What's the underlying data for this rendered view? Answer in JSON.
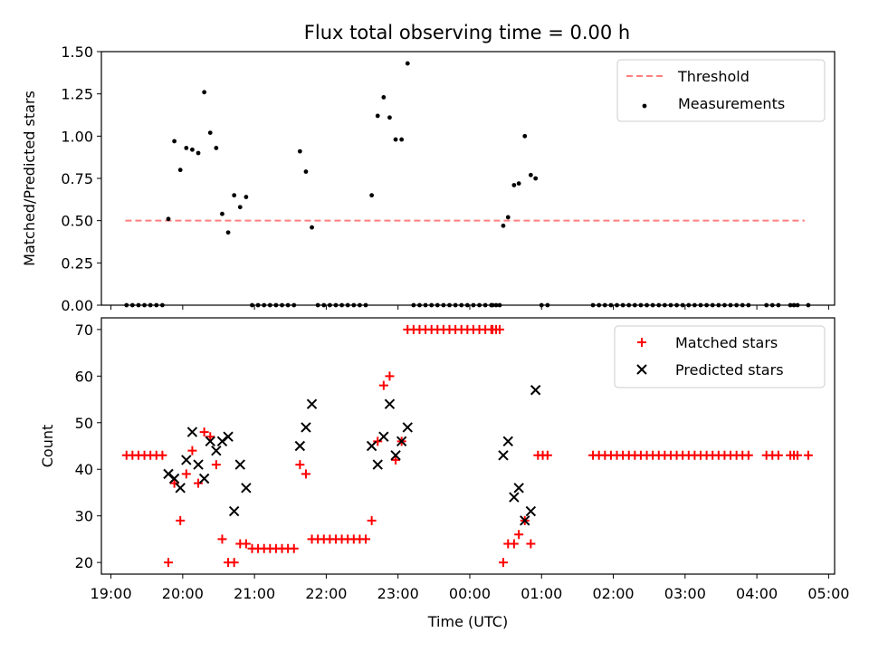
{
  "chart_data": [
    {
      "type": "scatter",
      "title": "Flux total observing time = 0.00 h",
      "xlabel": "",
      "ylabel": "Matched/Predicted stars",
      "xlim": [
        "18:52",
        "05:05"
      ],
      "ylim": [
        0,
        1.5
      ],
      "yticks": [
        "0.00",
        "0.25",
        "0.50",
        "0.75",
        "1.00",
        "1.25",
        "1.50"
      ],
      "xticks": [
        "19:00",
        "20:00",
        "21:00",
        "22:00",
        "23:00",
        "00:00",
        "01:00",
        "02:00",
        "03:00",
        "04:00",
        "05:00"
      ],
      "show_xtick_labels": false,
      "grid": false,
      "legend_position": "top-right",
      "threshold": {
        "name": "Threshold",
        "value": 0.5,
        "x_start": "19:12",
        "x_end": "04:40",
        "color": "#ff7f7f",
        "style": "dashed"
      },
      "series": [
        {
          "name": "Measurements",
          "color": "#000000",
          "marker": "dot",
          "points": [
            [
              "19:13",
              0
            ],
            [
              "19:18",
              0
            ],
            [
              "19:23",
              0
            ],
            [
              "19:28",
              0
            ],
            [
              "19:33",
              0
            ],
            [
              "19:38",
              0
            ],
            [
              "19:43",
              0
            ],
            [
              "19:48",
              0.51
            ],
            [
              "19:53",
              0.97
            ],
            [
              "19:58",
              0.8
            ],
            [
              "20:03",
              0.93
            ],
            [
              "20:08",
              0.92
            ],
            [
              "20:13",
              0.9
            ],
            [
              "20:18",
              1.26
            ],
            [
              "20:23",
              1.02
            ],
            [
              "20:28",
              0.93
            ],
            [
              "20:33",
              0.54
            ],
            [
              "20:38",
              0.43
            ],
            [
              "20:43",
              0.65
            ],
            [
              "20:48",
              0.58
            ],
            [
              "20:53",
              0.64
            ],
            [
              "20:58",
              0
            ],
            [
              "21:03",
              0
            ],
            [
              "21:08",
              0
            ],
            [
              "21:13",
              0
            ],
            [
              "21:18",
              0
            ],
            [
              "21:23",
              0
            ],
            [
              "21:28",
              0
            ],
            [
              "21:33",
              0
            ],
            [
              "21:38",
              0.91
            ],
            [
              "21:43",
              0.79
            ],
            [
              "21:48",
              0.46
            ],
            [
              "21:53",
              0
            ],
            [
              "21:58",
              0
            ],
            [
              "22:03",
              0
            ],
            [
              "22:08",
              0
            ],
            [
              "22:13",
              0
            ],
            [
              "22:18",
              0
            ],
            [
              "22:23",
              0
            ],
            [
              "22:28",
              0
            ],
            [
              "22:33",
              0
            ],
            [
              "22:38",
              0.65
            ],
            [
              "22:43",
              1.12
            ],
            [
              "22:48",
              1.23
            ],
            [
              "22:53",
              1.11
            ],
            [
              "22:58",
              0.98
            ],
            [
              "23:03",
              0.98
            ],
            [
              "23:08",
              1.43
            ],
            [
              "23:13",
              0
            ],
            [
              "23:18",
              0
            ],
            [
              "23:23",
              0
            ],
            [
              "23:28",
              0
            ],
            [
              "23:33",
              0
            ],
            [
              "23:38",
              0
            ],
            [
              "23:43",
              0
            ],
            [
              "23:48",
              0
            ],
            [
              "23:53",
              0
            ],
            [
              "23:58",
              0
            ],
            [
              "00:03",
              0
            ],
            [
              "00:08",
              0
            ],
            [
              "00:13",
              0
            ],
            [
              "00:18",
              0
            ],
            [
              "00:19",
              0
            ],
            [
              "00:22",
              0
            ],
            [
              "00:25",
              0
            ],
            [
              "00:28",
              0.47
            ],
            [
              "00:32",
              0.52
            ],
            [
              "00:37",
              0.71
            ],
            [
              "00:41",
              0.72
            ],
            [
              "00:46",
              1.0
            ],
            [
              "00:51",
              0.77
            ],
            [
              "00:55",
              0.75
            ],
            [
              "01:00",
              0
            ],
            [
              "01:05",
              0
            ],
            [
              "01:43",
              0
            ],
            [
              "01:48",
              0
            ],
            [
              "01:53",
              0
            ],
            [
              "01:58",
              0
            ],
            [
              "02:03",
              0
            ],
            [
              "02:08",
              0
            ],
            [
              "02:13",
              0
            ],
            [
              "02:18",
              0
            ],
            [
              "02:23",
              0
            ],
            [
              "02:28",
              0
            ],
            [
              "02:33",
              0
            ],
            [
              "02:38",
              0
            ],
            [
              "02:43",
              0
            ],
            [
              "02:48",
              0
            ],
            [
              "02:53",
              0
            ],
            [
              "02:58",
              0
            ],
            [
              "03:03",
              0
            ],
            [
              "03:08",
              0
            ],
            [
              "03:13",
              0
            ],
            [
              "03:18",
              0
            ],
            [
              "03:23",
              0
            ],
            [
              "03:28",
              0
            ],
            [
              "03:33",
              0
            ],
            [
              "03:38",
              0
            ],
            [
              "03:43",
              0
            ],
            [
              "03:48",
              0
            ],
            [
              "03:53",
              0
            ],
            [
              "04:08",
              0
            ],
            [
              "04:13",
              0
            ],
            [
              "04:18",
              0
            ],
            [
              "04:28",
              0
            ],
            [
              "04:31",
              0
            ],
            [
              "04:34",
              0
            ],
            [
              "04:43",
              0
            ]
          ]
        }
      ]
    },
    {
      "type": "scatter",
      "title": "",
      "xlabel": "Time (UTC)",
      "ylabel": "Count",
      "xlim": [
        "18:52",
        "05:05"
      ],
      "ylim": [
        17.5,
        72.5
      ],
      "yticks": [
        "20",
        "30",
        "40",
        "50",
        "60",
        "70"
      ],
      "xticks": [
        "19:00",
        "20:00",
        "21:00",
        "22:00",
        "23:00",
        "00:00",
        "01:00",
        "02:00",
        "03:00",
        "04:00",
        "05:00"
      ],
      "show_xtick_labels": true,
      "grid": false,
      "legend_position": "top-right",
      "series": [
        {
          "name": "Matched stars",
          "color": "#ff0000",
          "marker": "plus",
          "points": [
            [
              "19:13",
              43
            ],
            [
              "19:18",
              43
            ],
            [
              "19:23",
              43
            ],
            [
              "19:28",
              43
            ],
            [
              "19:33",
              43
            ],
            [
              "19:38",
              43
            ],
            [
              "19:43",
              43
            ],
            [
              "19:48",
              20
            ],
            [
              "19:53",
              37
            ],
            [
              "19:58",
              29
            ],
            [
              "20:03",
              39
            ],
            [
              "20:08",
              44
            ],
            [
              "20:13",
              37
            ],
            [
              "20:18",
              48
            ],
            [
              "20:23",
              47
            ],
            [
              "20:28",
              41
            ],
            [
              "20:33",
              25
            ],
            [
              "20:38",
              20
            ],
            [
              "20:43",
              20
            ],
            [
              "20:48",
              24
            ],
            [
              "20:53",
              24
            ],
            [
              "20:58",
              23
            ],
            [
              "21:03",
              23
            ],
            [
              "21:08",
              23
            ],
            [
              "21:13",
              23
            ],
            [
              "21:18",
              23
            ],
            [
              "21:23",
              23
            ],
            [
              "21:28",
              23
            ],
            [
              "21:33",
              23
            ],
            [
              "21:38",
              41
            ],
            [
              "21:43",
              39
            ],
            [
              "21:48",
              25
            ],
            [
              "21:53",
              25
            ],
            [
              "21:58",
              25
            ],
            [
              "22:03",
              25
            ],
            [
              "22:08",
              25
            ],
            [
              "22:13",
              25
            ],
            [
              "22:18",
              25
            ],
            [
              "22:23",
              25
            ],
            [
              "22:28",
              25
            ],
            [
              "22:33",
              25
            ],
            [
              "22:38",
              29
            ],
            [
              "22:43",
              46
            ],
            [
              "22:48",
              58
            ],
            [
              "22:53",
              60
            ],
            [
              "22:58",
              42
            ],
            [
              "23:03",
              46
            ],
            [
              "23:08",
              70
            ],
            [
              "23:13",
              70
            ],
            [
              "23:18",
              70
            ],
            [
              "23:23",
              70
            ],
            [
              "23:28",
              70
            ],
            [
              "23:33",
              70
            ],
            [
              "23:38",
              70
            ],
            [
              "23:43",
              70
            ],
            [
              "23:48",
              70
            ],
            [
              "23:53",
              70
            ],
            [
              "23:58",
              70
            ],
            [
              "00:03",
              70
            ],
            [
              "00:08",
              70
            ],
            [
              "00:13",
              70
            ],
            [
              "00:18",
              70
            ],
            [
              "00:19",
              70
            ],
            [
              "00:22",
              70
            ],
            [
              "00:25",
              70
            ],
            [
              "00:28",
              20
            ],
            [
              "00:32",
              24
            ],
            [
              "00:37",
              24
            ],
            [
              "00:41",
              26
            ],
            [
              "00:46",
              29
            ],
            [
              "00:51",
              24
            ],
            [
              "00:57",
              43
            ],
            [
              "01:01",
              43
            ],
            [
              "01:05",
              43
            ],
            [
              "01:43",
              43
            ],
            [
              "01:48",
              43
            ],
            [
              "01:53",
              43
            ],
            [
              "01:58",
              43
            ],
            [
              "02:03",
              43
            ],
            [
              "02:08",
              43
            ],
            [
              "02:13",
              43
            ],
            [
              "02:18",
              43
            ],
            [
              "02:23",
              43
            ],
            [
              "02:28",
              43
            ],
            [
              "02:33",
              43
            ],
            [
              "02:38",
              43
            ],
            [
              "02:43",
              43
            ],
            [
              "02:48",
              43
            ],
            [
              "02:53",
              43
            ],
            [
              "02:58",
              43
            ],
            [
              "03:03",
              43
            ],
            [
              "03:08",
              43
            ],
            [
              "03:13",
              43
            ],
            [
              "03:18",
              43
            ],
            [
              "03:23",
              43
            ],
            [
              "03:28",
              43
            ],
            [
              "03:33",
              43
            ],
            [
              "03:38",
              43
            ],
            [
              "03:43",
              43
            ],
            [
              "03:48",
              43
            ],
            [
              "03:53",
              43
            ],
            [
              "04:08",
              43
            ],
            [
              "04:13",
              43
            ],
            [
              "04:18",
              43
            ],
            [
              "04:28",
              43
            ],
            [
              "04:31",
              43
            ],
            [
              "04:34",
              43
            ],
            [
              "04:43",
              43
            ]
          ]
        },
        {
          "name": "Predicted stars",
          "color": "#000000",
          "marker": "x",
          "points": [
            [
              "19:48",
              39
            ],
            [
              "19:53",
              38
            ],
            [
              "19:58",
              36
            ],
            [
              "20:03",
              42
            ],
            [
              "20:08",
              48
            ],
            [
              "20:13",
              41
            ],
            [
              "20:18",
              38
            ],
            [
              "20:23",
              46
            ],
            [
              "20:28",
              44
            ],
            [
              "20:33",
              46
            ],
            [
              "20:38",
              47
            ],
            [
              "20:43",
              31
            ],
            [
              "20:48",
              41
            ],
            [
              "20:53",
              36
            ],
            [
              "21:38",
              45
            ],
            [
              "21:43",
              49
            ],
            [
              "21:48",
              54
            ],
            [
              "22:38",
              45
            ],
            [
              "22:43",
              41
            ],
            [
              "22:48",
              47
            ],
            [
              "22:53",
              54
            ],
            [
              "22:58",
              43
            ],
            [
              "23:03",
              46
            ],
            [
              "23:08",
              49
            ],
            [
              "00:28",
              43
            ],
            [
              "00:32",
              46
            ],
            [
              "00:37",
              34
            ],
            [
              "00:41",
              36
            ],
            [
              "00:46",
              29
            ],
            [
              "00:51",
              31
            ],
            [
              "00:55",
              57
            ]
          ]
        }
      ]
    }
  ]
}
